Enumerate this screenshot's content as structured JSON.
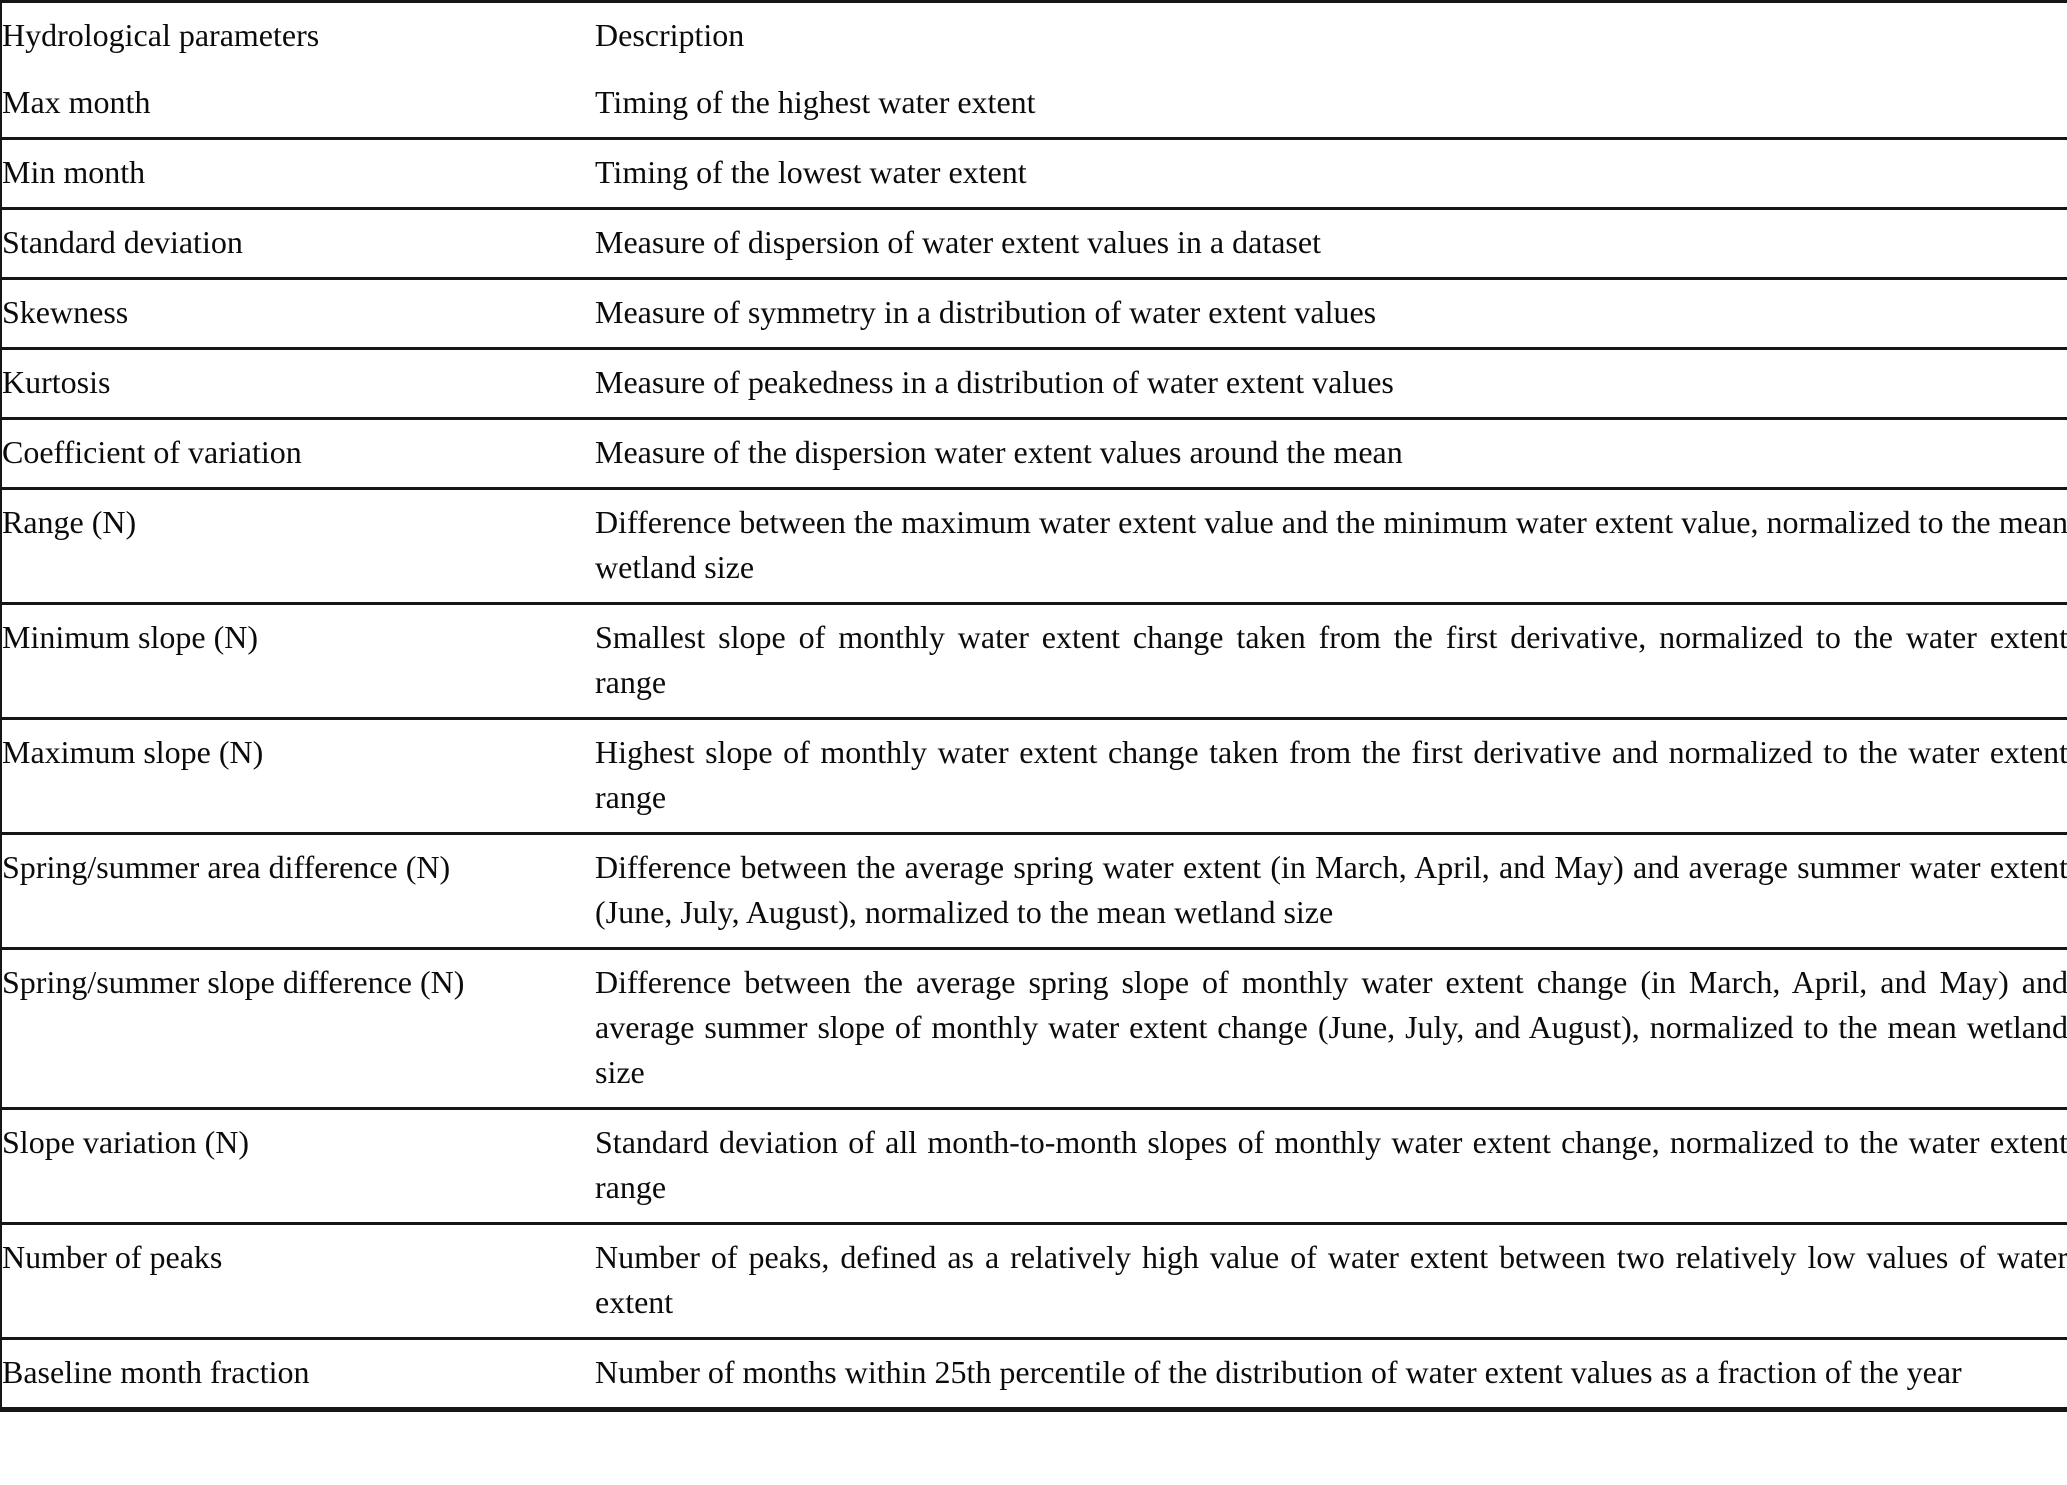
{
  "table": {
    "header": {
      "parameter": "Hydrological parameters",
      "description": "Description"
    },
    "rows": [
      {
        "parameter": "Max month",
        "description": "Timing of the highest water extent"
      },
      {
        "parameter": "Min month",
        "description": "Timing of the lowest water extent"
      },
      {
        "parameter": "Standard deviation",
        "description": "Measure of dispersion of water extent values in a dataset"
      },
      {
        "parameter": "Skewness",
        "description": "Measure of symmetry in a distribution of water extent values"
      },
      {
        "parameter": "Kurtosis",
        "description": "Measure of peakedness in a distribution of water extent values"
      },
      {
        "parameter": "Coefficient of variation",
        "description": "Measure of the dispersion water extent values around the mean"
      },
      {
        "parameter": "Range (N)",
        "description": "Difference between the maximum water extent value and the minimum water extent value, normalized to the mean wetland size"
      },
      {
        "parameter": "Minimum slope (N)",
        "description": "Smallest slope of monthly water extent change taken from the first derivative, normalized to the water extent range"
      },
      {
        "parameter": "Maximum slope (N)",
        "description": "Highest slope of monthly water extent change taken from the first derivative and normalized to the water extent range"
      },
      {
        "parameter": "Spring/summer area difference (N)",
        "description": "Difference between the average spring water extent (in March, April, and May) and average summer water extent (June, July, August), normalized to the mean wetland size"
      },
      {
        "parameter": "Spring/summer slope difference (N)",
        "description": "Difference between the average spring slope of monthly water extent change (in March, April, and May) and average summer slope of monthly water extent change (June, July, and August), normalized to the mean wetland size"
      },
      {
        "parameter": "Slope variation (N)",
        "description": "Standard deviation of all month-to-month slopes of monthly water extent change, normalized to the water extent range"
      },
      {
        "parameter": "Number of peaks",
        "description": "Number of peaks, defined as a relatively high value of water extent between two relatively low values of water extent"
      },
      {
        "parameter": "Baseline month fraction",
        "description": "Number of months within 25th percentile of the distribution of water extent values as a fraction of the year"
      }
    ]
  }
}
